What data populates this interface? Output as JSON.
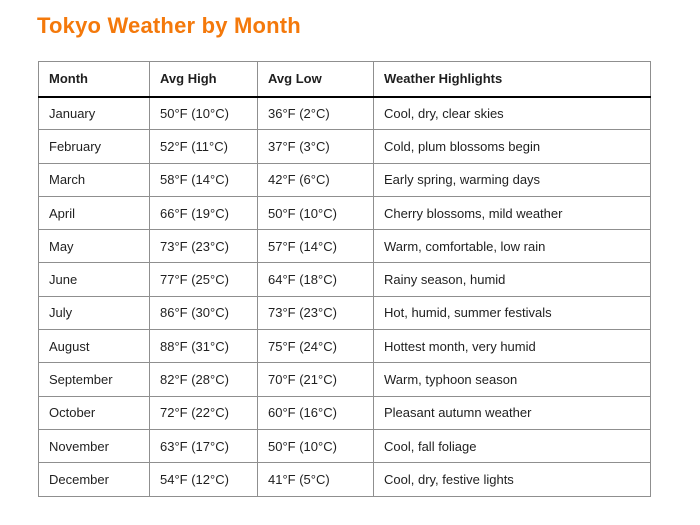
{
  "page": {
    "title": "Tokyo Weather by Month"
  },
  "colors": {
    "title_accent": "#F4790B",
    "text": "#1F1F1F",
    "table_border": "#8F8F8F",
    "header_rule": "#000000",
    "background": "#FFFFFF"
  },
  "table": {
    "columns": [
      "Month",
      "Avg High",
      "Avg Low",
      "Weather Highlights"
    ],
    "rows": [
      [
        "January",
        "50°F (10°C)",
        "36°F (2°C)",
        "Cool, dry, clear skies"
      ],
      [
        "February",
        "52°F (11°C)",
        "37°F (3°C)",
        "Cold, plum blossoms begin"
      ],
      [
        "March",
        "58°F (14°C)",
        "42°F (6°C)",
        "Early spring, warming days"
      ],
      [
        "April",
        "66°F (19°C)",
        "50°F (10°C)",
        "Cherry blossoms, mild weather"
      ],
      [
        "May",
        "73°F (23°C)",
        "57°F (14°C)",
        "Warm, comfortable, low rain"
      ],
      [
        "June",
        "77°F (25°C)",
        "64°F (18°C)",
        "Rainy season, humid"
      ],
      [
        "July",
        "86°F (30°C)",
        "73°F (23°C)",
        "Hot, humid, summer festivals"
      ],
      [
        "August",
        "88°F (31°C)",
        "75°F (24°C)",
        "Hottest month, very humid"
      ],
      [
        "September",
        "82°F (28°C)",
        "70°F (21°C)",
        "Warm, typhoon season"
      ],
      [
        "October",
        "72°F (22°C)",
        "60°F (16°C)",
        "Pleasant autumn weather"
      ],
      [
        "November",
        "63°F (17°C)",
        "50°F (10°C)",
        "Cool, fall foliage"
      ],
      [
        "December",
        "54°F (12°C)",
        "41°F (5°C)",
        "Cool, dry, festive lights"
      ]
    ]
  }
}
